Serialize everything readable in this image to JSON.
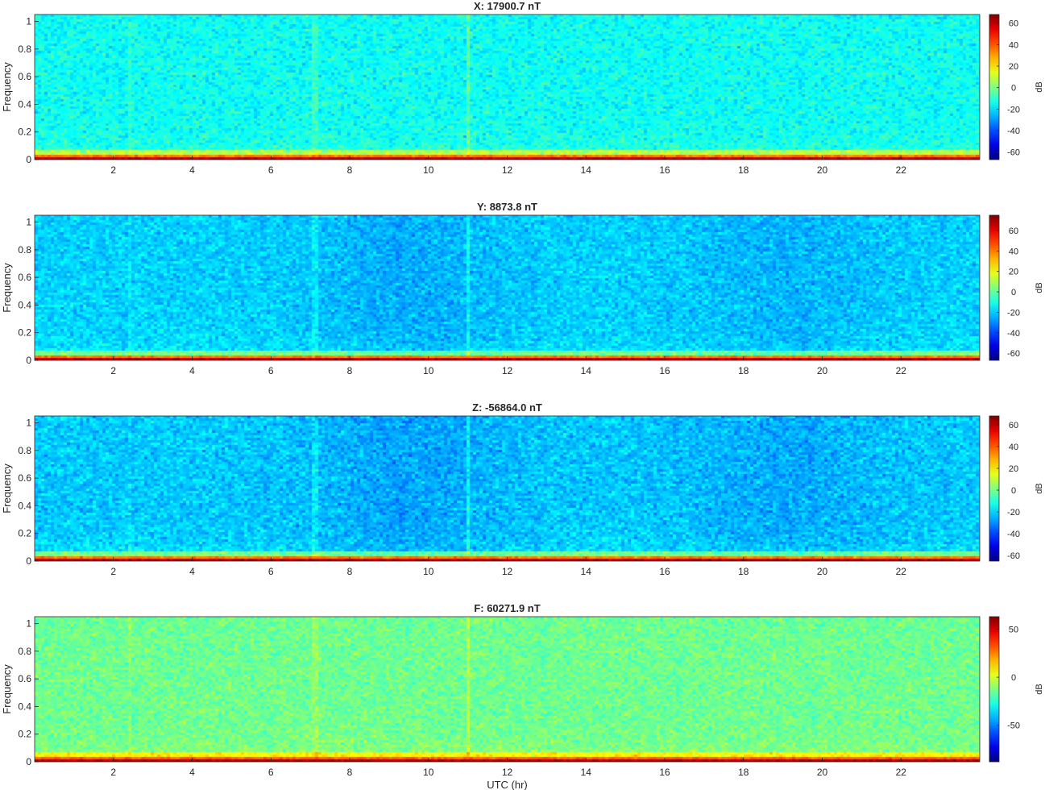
{
  "chart_data": [
    {
      "type": "heatmap",
      "title": "X: 17900.7 nT",
      "ylabel": "Frequency",
      "xlabel": "",
      "xlim": [
        0,
        24
      ],
      "ylim": [
        0,
        1.05
      ],
      "xticks": [
        "2",
        "4",
        "6",
        "8",
        "10",
        "12",
        "14",
        "16",
        "18",
        "20",
        "22"
      ],
      "yticks": [
        "0",
        "0.2",
        "0.4",
        "0.6",
        "0.8",
        "1"
      ],
      "colorbar": {
        "label": "dB",
        "range": [
          -67,
          68
        ],
        "ticks": [
          -60,
          -40,
          -20,
          0,
          20,
          40,
          60
        ],
        "colormap": "jet"
      },
      "background_level_db": -15,
      "low_frequency_band_db": 60
    },
    {
      "type": "heatmap",
      "title": "Y: 8873.8 nT",
      "ylabel": "Frequency",
      "xlabel": "",
      "xlim": [
        0,
        24
      ],
      "ylim": [
        0,
        1.05
      ],
      "xticks": [
        "2",
        "4",
        "6",
        "8",
        "10",
        "12",
        "14",
        "16",
        "18",
        "20",
        "22"
      ],
      "yticks": [
        "0",
        "0.2",
        "0.4",
        "0.6",
        "0.8",
        "1"
      ],
      "colorbar": {
        "label": "dB",
        "range": [
          -67,
          75
        ],
        "ticks": [
          -60,
          -40,
          -20,
          0,
          20,
          40,
          60
        ],
        "colormap": "jet"
      },
      "background_level_db": -20,
      "low_frequency_band_db": 65
    },
    {
      "type": "heatmap",
      "title": "Z: -56864.0 nT",
      "ylabel": "Frequency",
      "xlabel": "",
      "xlim": [
        0,
        24
      ],
      "ylim": [
        0,
        1.05
      ],
      "xticks": [
        "2",
        "4",
        "6",
        "8",
        "10",
        "12",
        "14",
        "16",
        "18",
        "20",
        "22"
      ],
      "yticks": [
        "0",
        "0.2",
        "0.4",
        "0.6",
        "0.8",
        "1"
      ],
      "colorbar": {
        "label": "dB",
        "range": [
          -65,
          68
        ],
        "ticks": [
          -60,
          -40,
          -20,
          0,
          20,
          40,
          60
        ],
        "colormap": "jet"
      },
      "background_level_db": -22,
      "low_frequency_band_db": 60
    },
    {
      "type": "heatmap",
      "title": "F: 60271.9 nT",
      "ylabel": "Frequency",
      "xlabel": "UTC (hr)",
      "xlim": [
        0,
        24
      ],
      "ylim": [
        0,
        1.05
      ],
      "xticks": [
        "2",
        "4",
        "6",
        "8",
        "10",
        "12",
        "14",
        "16",
        "18",
        "20",
        "22"
      ],
      "yticks": [
        "0",
        "0.2",
        "0.4",
        "0.6",
        "0.8",
        "1"
      ],
      "colorbar": {
        "label": "dB",
        "range": [
          -88,
          63
        ],
        "ticks": [
          -50,
          0,
          50
        ],
        "colormap": "jet"
      },
      "background_level_db": -15,
      "low_frequency_band_db": 55
    }
  ]
}
